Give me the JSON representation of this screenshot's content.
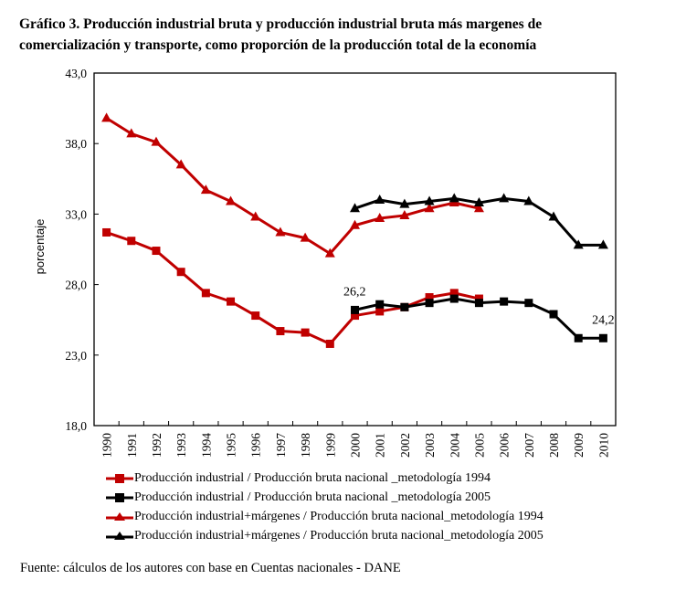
{
  "title": {
    "line1": "Gráfico 3. Producción industrial bruta y producción industrial bruta más margenes de",
    "line2": "comercialización y transporte, como proporción de la producción total de la economía"
  },
  "source": "Fuente: cálculos de los autores con base en Cuentas nacionales - DANE",
  "colors": {
    "red": "#C00000",
    "black": "#000000"
  },
  "chart_data": {
    "type": "line",
    "title": "Gráfico 3. Producción industrial bruta y producción industrial bruta más margenes de comercialización y transporte, como proporción de la producción total de la economía",
    "xlabel": "",
    "ylabel": "porcentaje",
    "ylim": [
      18.0,
      43.0
    ],
    "yticks": [
      "18,0",
      "23,0",
      "28,0",
      "33,0",
      "38,0",
      "43,0"
    ],
    "ytick_values": [
      18,
      23,
      28,
      33,
      38,
      43
    ],
    "grid": false,
    "legend_position": "bottom",
    "categories": [
      "1990",
      "1991",
      "1992",
      "1993",
      "1994",
      "1995",
      "1996",
      "1997",
      "1998",
      "1999",
      "2000",
      "2001",
      "2002",
      "2003",
      "2004",
      "2005",
      "2006",
      "2007",
      "2008",
      "2009",
      "2010"
    ],
    "series": [
      {
        "name": "Producción industrial / Producción bruta nacional _metodología 1994",
        "color": "#C00000",
        "marker": "square",
        "values": [
          31.7,
          31.1,
          30.4,
          28.9,
          27.4,
          26.8,
          25.8,
          24.7,
          24.6,
          23.8,
          25.8,
          26.1,
          26.4,
          27.1,
          27.4,
          27.0,
          null,
          null,
          null,
          null,
          null
        ]
      },
      {
        "name": "Producción industrial / Producción bruta nacional _metodología 2005",
        "color": "#000000",
        "marker": "square",
        "values": [
          null,
          null,
          null,
          null,
          null,
          null,
          null,
          null,
          null,
          null,
          26.2,
          26.6,
          26.4,
          26.7,
          27.0,
          26.7,
          26.8,
          26.7,
          25.9,
          24.2,
          24.2
        ]
      },
      {
        "name": "Producción industrial+márgenes / Producción bruta nacional_metodología 1994",
        "color": "#C00000",
        "marker": "triangle",
        "values": [
          39.8,
          38.7,
          38.1,
          36.5,
          34.7,
          33.9,
          32.8,
          31.7,
          31.3,
          30.2,
          32.2,
          32.7,
          32.9,
          33.4,
          33.8,
          33.4,
          null,
          null,
          null,
          null,
          null
        ]
      },
      {
        "name": "Producción industrial+márgenes / Producción bruta nacional_metodología 2005",
        "color": "#000000",
        "marker": "triangle",
        "values": [
          null,
          null,
          null,
          null,
          null,
          null,
          null,
          null,
          null,
          null,
          33.4,
          34.0,
          33.7,
          33.9,
          34.1,
          33.8,
          34.1,
          33.9,
          32.8,
          30.8,
          30.8
        ]
      }
    ],
    "annotations": [
      {
        "text": "26,2",
        "series": 1,
        "category": "2000"
      },
      {
        "text": "24,2",
        "series": 1,
        "category": "2010"
      }
    ]
  }
}
